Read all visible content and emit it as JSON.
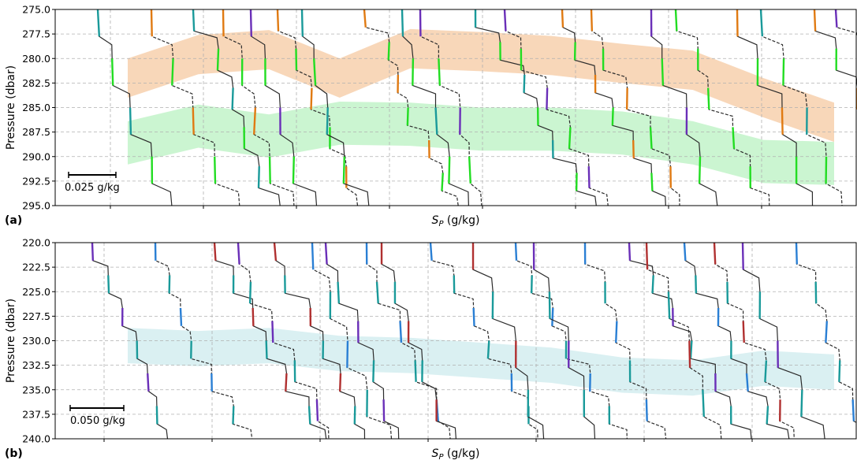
{
  "chart_data": [
    {
      "panel": "a",
      "panel_label": "(a)",
      "type": "line",
      "xlabel": "S_P (g/kg)",
      "ylabel": "Pressure (dbar)",
      "ylim": [
        295.0,
        275.0
      ],
      "y_inverted": true,
      "y_ticks": [
        "275.0",
        "277.5",
        "280.0",
        "282.5",
        "285.0",
        "287.5",
        "290.0",
        "292.5",
        "295.0"
      ],
      "grid": true,
      "scale_bar": "0.025 g/kg",
      "n_profiles": 16,
      "bands": [
        {
          "color": "#f6c9a2",
          "center": [
            282.0,
            279.6,
            279.1,
            282.0,
            279.0,
            279.3,
            279.7,
            280.5,
            281.2,
            284.0,
            286.5
          ],
          "half_width": 2.0
        },
        {
          "color": "#b9f2c2",
          "center": [
            288.6,
            286.9,
            287.9,
            286.6,
            286.7,
            287.2,
            287.2,
            287.6,
            288.6,
            290.5,
            290.7
          ],
          "half_width": 2.2
        }
      ],
      "colors": {
        "profile": "#222222",
        "band1_segment": "#e07a12",
        "band2_segment": "#22dd22",
        "lower_segment": "#6a2fb8",
        "cyan_segment": "#1a9a9a",
        "marker": "#c0392b"
      }
    },
    {
      "panel": "b",
      "panel_label": "(b)",
      "type": "line",
      "xlabel": "S_P (g/kg)",
      "ylabel": "Pressure (dbar)",
      "ylim": [
        240.0,
        220.0
      ],
      "y_inverted": true,
      "y_ticks": [
        "220.0",
        "222.5",
        "225.0",
        "227.5",
        "230.0",
        "232.5",
        "235.0",
        "237.5",
        "240.0"
      ],
      "grid": true,
      "scale_bar": "0.050 g/kg",
      "n_profiles": 17,
      "bands": [
        {
          "color": "#cdebed",
          "center": [
            230.5,
            230.8,
            230.5,
            231.3,
            231.5,
            232.0,
            232.5,
            233.5,
            233.8,
            232.8,
            233.2
          ],
          "half_width": 1.8
        }
      ],
      "colors": {
        "profile": "#222222",
        "blue_segment": "#2a7fd4",
        "cyan_segment": "#1a9a9a",
        "green_segment": "#22dd22",
        "purple_segment": "#6a2fb8",
        "red_segment": "#b03030"
      }
    }
  ]
}
